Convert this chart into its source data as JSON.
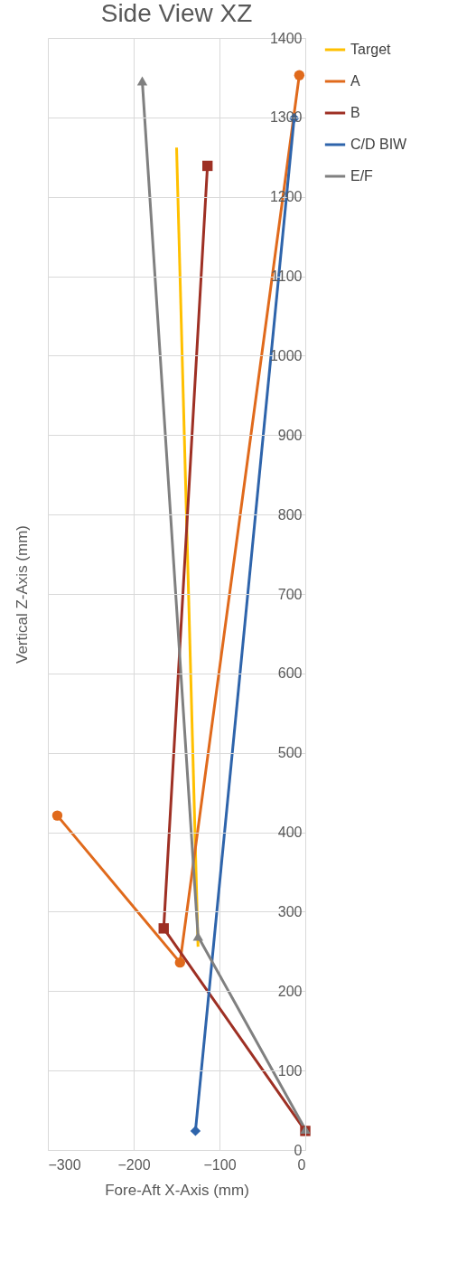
{
  "chart_data": {
    "type": "line",
    "title": "Side View XZ",
    "xlabel": "Fore-Aft X-Axis (mm)",
    "ylabel": "Vertical Z-Axis (mm)",
    "xlim": [
      -300,
      0
    ],
    "xticks": [
      -300,
      -200,
      -100,
      0
    ],
    "ylim": [
      0,
      1400
    ],
    "yticks": [
      0,
      100,
      200,
      300,
      400,
      500,
      600,
      700,
      800,
      900,
      1000,
      1100,
      1200,
      1300,
      1400
    ],
    "grid": true,
    "legend": "right",
    "series": [
      {
        "name": "Target",
        "color": "#ffc000",
        "marker": "none",
        "x": [
          -150,
          -125
        ],
        "values": [
          1262,
          256
        ]
      },
      {
        "name": "A",
        "color": "#e06a1c",
        "marker": "circle",
        "x": [
          -289,
          -146,
          -7
        ],
        "values": [
          421,
          236,
          1353
        ]
      },
      {
        "name": "B",
        "color": "#9e3024",
        "marker": "square",
        "x": [
          0,
          -165,
          -114
        ],
        "values": [
          24,
          279,
          1239
        ]
      },
      {
        "name": "C/D BIW",
        "color": "#2e64ab",
        "marker": "diamond",
        "x": [
          -128,
          -13
        ],
        "values": [
          24,
          1299
        ]
      },
      {
        "name": "E/F",
        "color": "#808080",
        "marker": "triangle",
        "x": [
          0,
          -125,
          -190
        ],
        "values": [
          26,
          269,
          1346
        ]
      }
    ]
  }
}
